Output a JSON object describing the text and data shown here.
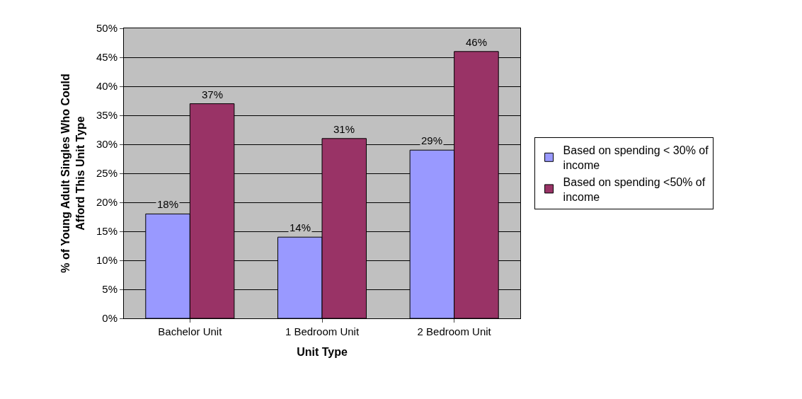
{
  "chart_data": {
    "type": "bar",
    "xlabel": "Unit Type",
    "ylabel": "% of Young Adult Singles Who Could Afford This Unit Type",
    "categories": [
      "Bachelor Unit",
      "1 Bedroom Unit",
      "2 Bedroom Unit"
    ],
    "series": [
      {
        "name": "Based on spending < 30% of income",
        "color": "#9999ff",
        "values": [
          18,
          14,
          29
        ],
        "value_labels": [
          "18%",
          "14%",
          "29%"
        ]
      },
      {
        "name": "Based on spending <50% of income",
        "color": "#993366",
        "values": [
          37,
          31,
          46
        ],
        "value_labels": [
          "37%",
          "31%",
          "46%"
        ]
      }
    ],
    "ylim": [
      0,
      50
    ],
    "yticks": [
      {
        "value": 0,
        "label": "0%"
      },
      {
        "value": 5,
        "label": "5%"
      },
      {
        "value": 10,
        "label": "10%"
      },
      {
        "value": 15,
        "label": "15%"
      },
      {
        "value": 20,
        "label": "20%"
      },
      {
        "value": 25,
        "label": "25%"
      },
      {
        "value": 30,
        "label": "30%"
      },
      {
        "value": 35,
        "label": "35%"
      },
      {
        "value": 40,
        "label": "40%"
      },
      {
        "value": 45,
        "label": "45%"
      },
      {
        "value": 50,
        "label": "50%"
      }
    ],
    "grid": "y",
    "legend": "right"
  }
}
